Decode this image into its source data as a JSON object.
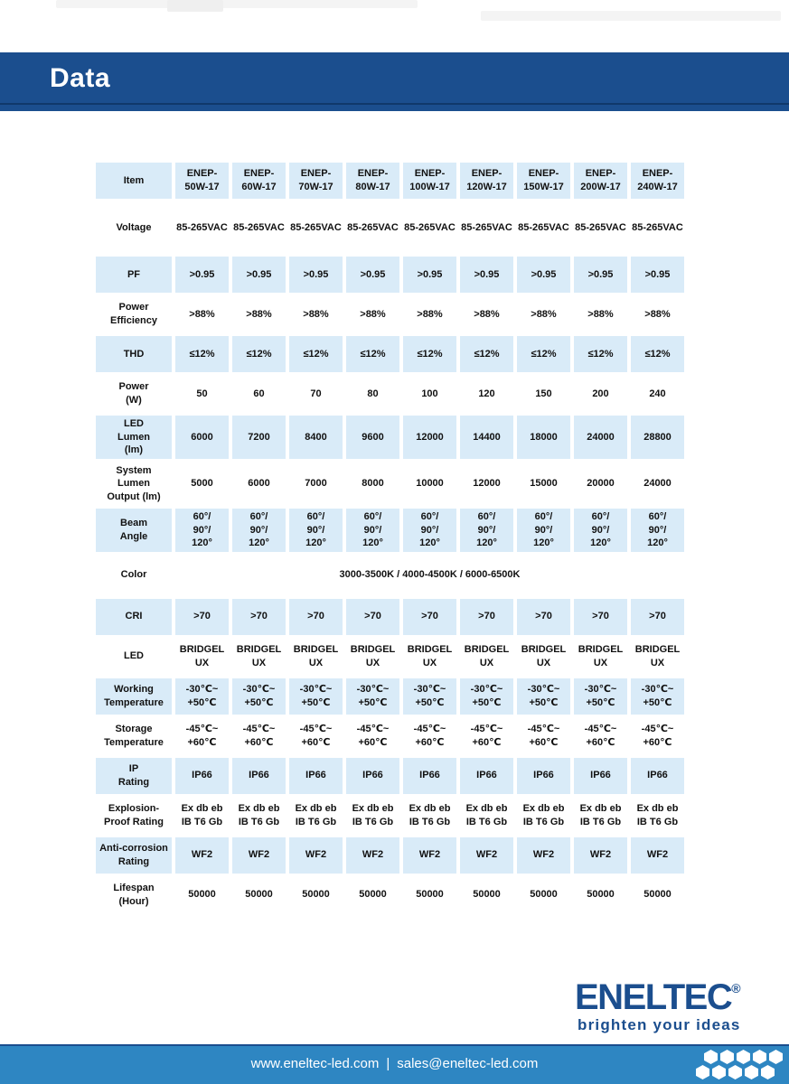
{
  "header": {
    "title": "Data"
  },
  "table": {
    "item_label": "Item",
    "columns": [
      "ENEP-\n50W-17",
      "ENEP-\n60W-17",
      "ENEP-\n70W-17",
      "ENEP-\n80W-17",
      "ENEP-\n100W-17",
      "ENEP-\n120W-17",
      "ENEP-\n150W-17",
      "ENEP-\n200W-17",
      "ENEP-\n240W-17"
    ],
    "rows": [
      {
        "label": "Voltage",
        "shaded": false,
        "values": [
          "85-265VAC",
          "85-265VAC",
          "85-265VAC",
          "85-265VAC",
          "85-265VAC",
          "85-265VAC",
          "85-265VAC",
          "85-265VAC",
          "85-265VAC"
        ]
      },
      {
        "label": "PF",
        "shaded": true,
        "values": [
          ">0.95",
          ">0.95",
          ">0.95",
          ">0.95",
          ">0.95",
          ">0.95",
          ">0.95",
          ">0.95",
          ">0.95"
        ]
      },
      {
        "label": "Power\nEfficiency",
        "shaded": false,
        "values": [
          ">88%",
          ">88%",
          ">88%",
          ">88%",
          ">88%",
          ">88%",
          ">88%",
          ">88%",
          ">88%"
        ]
      },
      {
        "label": "THD",
        "shaded": true,
        "values": [
          "≤12%",
          "≤12%",
          "≤12%",
          "≤12%",
          "≤12%",
          "≤12%",
          "≤12%",
          "≤12%",
          "≤12%"
        ]
      },
      {
        "label": "Power\n(W)",
        "shaded": false,
        "values": [
          "50",
          "60",
          "70",
          "80",
          "100",
          "120",
          "150",
          "200",
          "240"
        ]
      },
      {
        "label": "LED\nLumen\n(lm)",
        "shaded": true,
        "values": [
          "6000",
          "7200",
          "8400",
          "9600",
          "12000",
          "14400",
          "18000",
          "24000",
          "28800"
        ]
      },
      {
        "label": "System\nLumen\nOutput (lm)",
        "shaded": false,
        "values": [
          "5000",
          "6000",
          "7000",
          "8000",
          "10000",
          "12000",
          "15000",
          "20000",
          "24000"
        ]
      },
      {
        "label": "Beam\nAngle",
        "shaded": true,
        "values": [
          "60°/\n90°/\n120°",
          "60°/\n90°/\n120°",
          "60°/\n90°/\n120°",
          "60°/\n90°/\n120°",
          "60°/\n90°/\n120°",
          "60°/\n90°/\n120°",
          "60°/\n90°/\n120°",
          "60°/\n90°/\n120°",
          "60°/\n90°/\n120°"
        ]
      },
      {
        "label": "Color",
        "shaded": false,
        "merged_value": "3000-3500K / 4000-4500K / 6000-6500K"
      },
      {
        "label": "CRI",
        "shaded": true,
        "values": [
          ">70",
          ">70",
          ">70",
          ">70",
          ">70",
          ">70",
          ">70",
          ">70",
          ">70"
        ]
      },
      {
        "label": "LED",
        "shaded": false,
        "values": [
          "BRIDGEL\nUX",
          "BRIDGEL\nUX",
          "BRIDGEL\nUX",
          "BRIDGEL\nUX",
          "BRIDGEL\nUX",
          "BRIDGEL\nUX",
          "BRIDGEL\nUX",
          "BRIDGEL\nUX",
          "BRIDGEL\nUX"
        ]
      },
      {
        "label": "Working\nTemperature",
        "shaded": true,
        "values": [
          "-30℃~\n+50℃",
          "-30℃~\n+50℃",
          "-30℃~\n+50℃",
          "-30℃~\n+50℃",
          "-30℃~\n+50℃",
          "-30℃~\n+50℃",
          "-30℃~\n+50℃",
          "-30℃~\n+50℃",
          "-30℃~\n+50℃"
        ]
      },
      {
        "label": "Storage\nTemperature",
        "shaded": false,
        "values": [
          "-45℃~\n+60℃",
          "-45℃~\n+60℃",
          "-45℃~\n+60℃",
          "-45℃~\n+60℃",
          "-45℃~\n+60℃",
          "-45℃~\n+60℃",
          "-45℃~\n+60℃",
          "-45℃~\n+60℃",
          "-45℃~\n+60℃"
        ]
      },
      {
        "label": "IP\nRating",
        "shaded": true,
        "values": [
          "IP66",
          "IP66",
          "IP66",
          "IP66",
          "IP66",
          "IP66",
          "IP66",
          "IP66",
          "IP66"
        ]
      },
      {
        "label": "Explosion-\nProof Rating",
        "shaded": false,
        "values": [
          "Ex db eb\nIB T6 Gb",
          "Ex db eb\nIB T6 Gb",
          "Ex db eb\nIB T6 Gb",
          "Ex db eb\nIB T6 Gb",
          "Ex db eb\nIB T6 Gb",
          "Ex db eb\nIB T6 Gb",
          "Ex db eb\nIB T6 Gb",
          "Ex db eb\nIB T6 Gb",
          "Ex db eb\nIB T6 Gb"
        ]
      },
      {
        "label": "Anti-corrosion\nRating",
        "shaded": true,
        "values": [
          "WF2",
          "WF2",
          "WF2",
          "WF2",
          "WF2",
          "WF2",
          "WF2",
          "WF2",
          "WF2"
        ]
      },
      {
        "label": "Lifespan\n(Hour)",
        "shaded": false,
        "values": [
          "50000",
          "50000",
          "50000",
          "50000",
          "50000",
          "50000",
          "50000",
          "50000",
          "50000"
        ]
      }
    ]
  },
  "logo": {
    "brand": "ENELTEC",
    "registered_mark": "®",
    "tagline": "brighten your ideas"
  },
  "footer": {
    "website": "www.eneltec-led.com",
    "separator": "|",
    "email": "sales@eneltec-led.com"
  },
  "colors": {
    "title_band": "#1b4e8e",
    "title_band_inner_line": "#10386b",
    "cell_shaded_blue": "#d9ebf8",
    "footer_bar": "#2e86c2",
    "logo_blue": "#1b4e8e"
  }
}
